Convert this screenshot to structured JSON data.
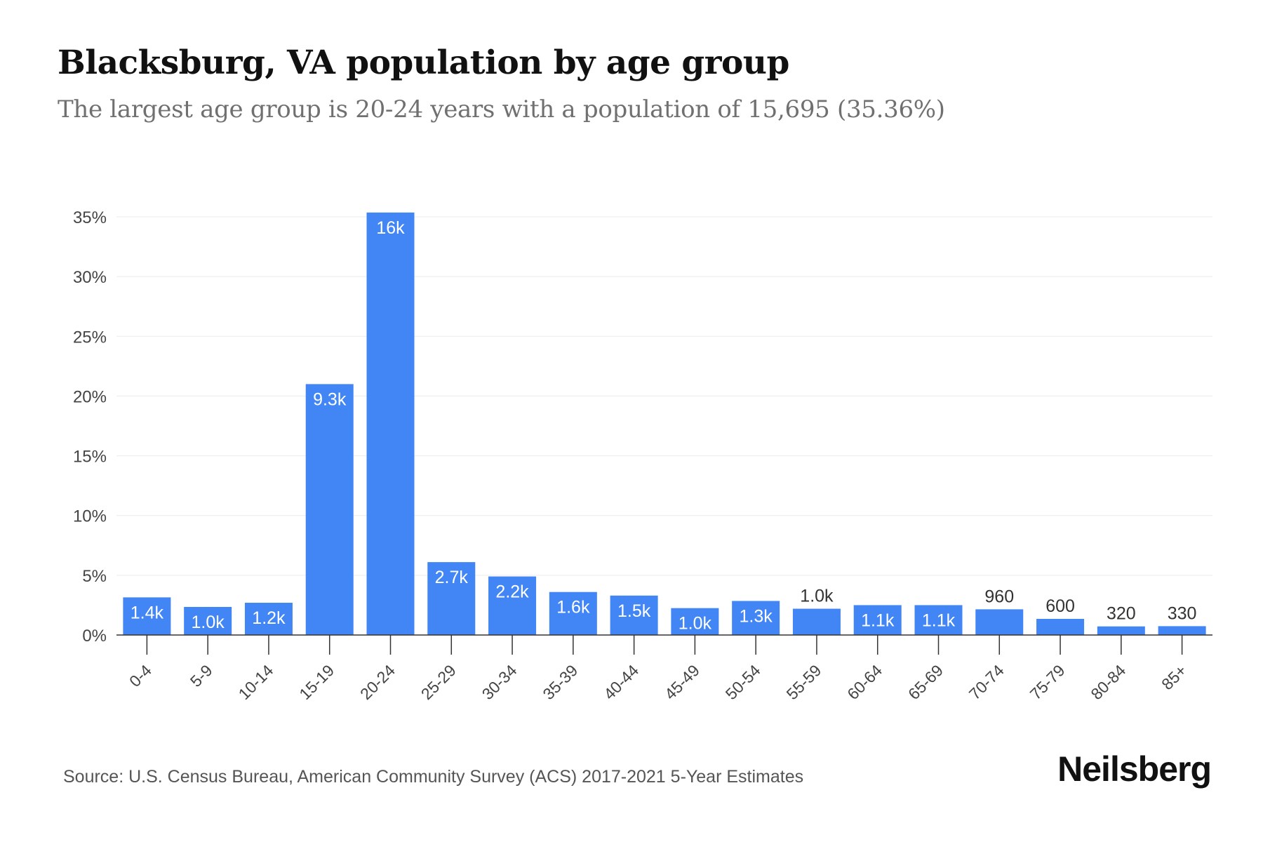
{
  "chart_data": {
    "type": "bar",
    "title": "Blacksburg, VA population by age group",
    "subtitle": "The largest age group is 20-24 years with a population of 15,695 (35.36%)",
    "categories": [
      "0-4",
      "5-9",
      "10-14",
      "15-19",
      "20-24",
      "25-29",
      "30-34",
      "35-39",
      "40-44",
      "45-49",
      "50-54",
      "55-59",
      "60-64",
      "65-69",
      "70-74",
      "75-79",
      "80-84",
      "85+"
    ],
    "values": [
      3.15,
      2.35,
      2.7,
      21.0,
      35.36,
      6.1,
      4.9,
      3.6,
      3.3,
      2.25,
      2.85,
      2.2,
      2.5,
      2.5,
      2.15,
      1.35,
      0.72,
      0.74
    ],
    "labels": [
      "1.4k",
      "1.0k",
      "1.2k",
      "9.3k",
      "16k",
      "2.7k",
      "2.2k",
      "1.6k",
      "1.5k",
      "1.0k",
      "1.3k",
      "1.0k",
      "1.1k",
      "1.1k",
      "960",
      "600",
      "320",
      "330"
    ],
    "ylim": [
      0,
      35
    ],
    "yticks": [
      "0%",
      "5%",
      "10%",
      "15%",
      "20%",
      "25%",
      "30%",
      "35%"
    ],
    "ytick_values": [
      0,
      5,
      10,
      15,
      20,
      25,
      30,
      35
    ],
    "xlabel": "",
    "ylabel": "",
    "grid": true,
    "bar_color": "#4285F4"
  },
  "footer": {
    "source": "Source: U.S. Census Bureau, American Community Survey (ACS) 2017-2021 5-Year Estimates",
    "brand": "Neilsberg"
  }
}
